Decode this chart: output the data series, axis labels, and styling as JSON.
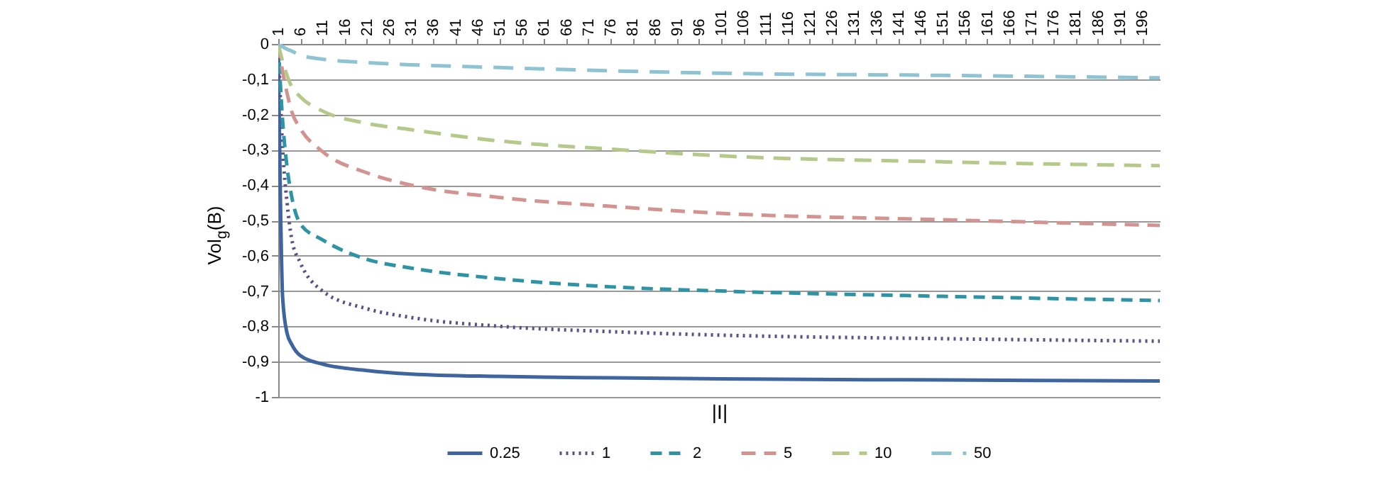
{
  "chart_data": {
    "type": "line",
    "xlabel": "|I|",
    "ylabel": "Vol$_{g}$(B)",
    "x": [
      1,
      2,
      3,
      4,
      6,
      11,
      21,
      31,
      51,
      76,
      101,
      151,
      200
    ],
    "series": [
      {
        "name": "0.25",
        "color": "#3e659e",
        "line_style": "solid",
        "values": [
          0,
          -0.72,
          -0.82,
          -0.85,
          -0.883,
          -0.907,
          -0.925,
          -0.935,
          -0.942,
          -0.946,
          -0.949,
          -0.952,
          -0.955
        ]
      },
      {
        "name": "1",
        "color": "#5b4f8a",
        "line_style": "dotted",
        "values": [
          0,
          -0.3,
          -0.45,
          -0.55,
          -0.62,
          -0.7,
          -0.75,
          -0.775,
          -0.8,
          -0.815,
          -0.825,
          -0.835,
          -0.842
        ]
      },
      {
        "name": "2",
        "color": "#2f93a6",
        "line_style": "dashed",
        "values": [
          0,
          -0.22,
          -0.35,
          -0.43,
          -0.51,
          -0.555,
          -0.61,
          -0.635,
          -0.665,
          -0.688,
          -0.7,
          -0.715,
          -0.727
        ]
      },
      {
        "name": "5",
        "color": "#d39391",
        "line_style": "dashed",
        "values": [
          0,
          -0.08,
          -0.14,
          -0.19,
          -0.24,
          -0.305,
          -0.365,
          -0.4,
          -0.435,
          -0.46,
          -0.48,
          -0.498,
          -0.514
        ]
      },
      {
        "name": "10",
        "color": "#b5c98a",
        "line_style": "dashed",
        "values": [
          0,
          -0.05,
          -0.09,
          -0.12,
          -0.15,
          -0.19,
          -0.225,
          -0.243,
          -0.275,
          -0.298,
          -0.317,
          -0.334,
          -0.345
        ]
      },
      {
        "name": "50",
        "color": "#8ec3d4",
        "line_style": "dashed",
        "values": [
          0,
          -0.008,
          -0.015,
          -0.02,
          -0.032,
          -0.043,
          -0.053,
          -0.059,
          -0.067,
          -0.076,
          -0.083,
          -0.089,
          -0.096
        ]
      }
    ],
    "xlim": [
      1,
      200
    ],
    "xticks": [
      1,
      6,
      11,
      16,
      21,
      26,
      31,
      36,
      41,
      46,
      51,
      56,
      61,
      66,
      71,
      76,
      81,
      86,
      91,
      96,
      101,
      106,
      111,
      116,
      121,
      126,
      131,
      136,
      141,
      146,
      151,
      156,
      161,
      166,
      171,
      176,
      181,
      186,
      191,
      196
    ],
    "ylim": [
      -1,
      0
    ],
    "yticks": [
      0,
      {
        "value": -0.1,
        "label": "-0,1"
      },
      {
        "value": -0.2,
        "label": "-0,2"
      },
      {
        "value": -0.3,
        "label": "-0,3"
      },
      {
        "value": -0.4,
        "label": "-0,4"
      },
      {
        "value": -0.5,
        "label": "-0,5"
      },
      {
        "value": -0.6,
        "label": "-0,6"
      },
      {
        "value": -0.7,
        "label": "-0,7"
      },
      {
        "value": -0.8,
        "label": "-0,8"
      },
      {
        "value": -0.9,
        "label": "-0,9"
      },
      -1
    ],
    "grid": "y",
    "legend": "bottom"
  }
}
